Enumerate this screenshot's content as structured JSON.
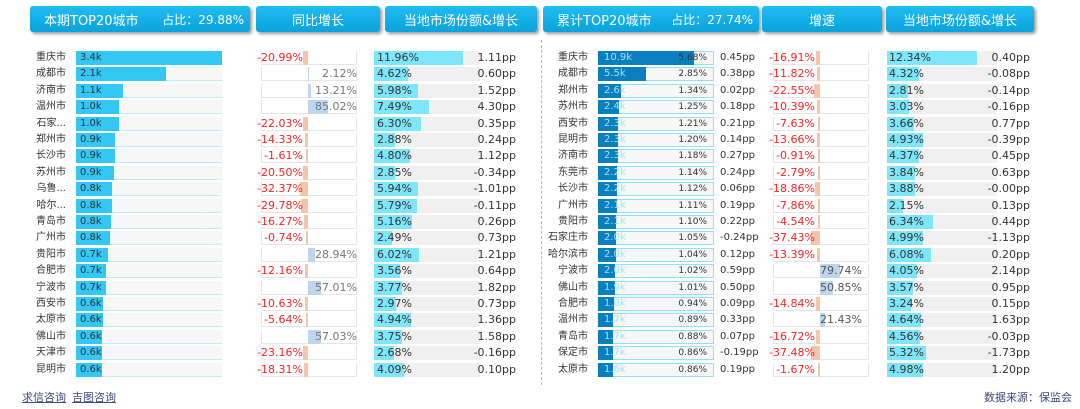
{
  "left": {
    "title": "本期TOP20城市",
    "share_label": "占比：29.88%",
    "growth_header": "同比增长",
    "local_header": "当地市场份额&增长",
    "rows": [
      [
        "重庆市",
        "3.4k",
        3.4,
        -20.99,
        "-20.99%",
        "11.96%",
        11.96,
        "1.11pp"
      ],
      [
        "成都市",
        "2.1k",
        2.1,
        2.12,
        "2.12%",
        "4.62%",
        4.62,
        "0.60pp"
      ],
      [
        "济南市",
        "1.1k",
        1.1,
        13.21,
        "13.21%",
        "5.98%",
        5.98,
        "1.52pp"
      ],
      [
        "温州市",
        "1.0k",
        1.0,
        85.02,
        "85.02%",
        "7.49%",
        7.49,
        "4.30pp"
      ],
      [
        "石家...",
        "1.0k",
        1.0,
        -22.03,
        "-22.03%",
        "6.30%",
        6.3,
        "0.35pp"
      ],
      [
        "郑州市",
        "0.9k",
        0.9,
        -14.33,
        "-14.33%",
        "2.88%",
        2.88,
        "0.24pp"
      ],
      [
        "长沙市",
        "0.9k",
        0.9,
        -1.61,
        "-1.61%",
        "4.80%",
        4.8,
        "1.12pp"
      ],
      [
        "苏州市",
        "0.9k",
        0.88,
        -20.5,
        "-20.50%",
        "2.85%",
        2.85,
        "-0.34pp"
      ],
      [
        "乌鲁...",
        "0.8k",
        0.84,
        -32.37,
        "-32.37%",
        "5.94%",
        5.94,
        "-1.01pp"
      ],
      [
        "哈尔...",
        "0.8k",
        0.83,
        -29.78,
        "-29.78%",
        "5.79%",
        5.79,
        "-0.11pp"
      ],
      [
        "青岛市",
        "0.8k",
        0.81,
        -16.27,
        "-16.27%",
        "5.16%",
        5.16,
        "0.26pp"
      ],
      [
        "广州市",
        "0.8k",
        0.79,
        -0.74,
        "-0.74%",
        "2.49%",
        2.49,
        "0.73pp"
      ],
      [
        "贵阳市",
        "0.7k",
        0.74,
        28.94,
        "28.94%",
        "6.02%",
        6.02,
        "1.21pp"
      ],
      [
        "合肥市",
        "0.7k",
        0.69,
        -12.16,
        "-12.16%",
        "3.56%",
        3.56,
        "0.64pp"
      ],
      [
        "宁波市",
        "0.7k",
        0.69,
        57.01,
        "57.01%",
        "3.77%",
        3.77,
        "1.82pp"
      ],
      [
        "西安市",
        "0.6k",
        0.64,
        -10.63,
        "-10.63%",
        "2.97%",
        2.97,
        "0.73pp"
      ],
      [
        "太原市",
        "0.6k",
        0.62,
        -5.64,
        "-5.64%",
        "4.94%",
        4.94,
        "1.36pp"
      ],
      [
        "佛山市",
        "0.6k",
        0.61,
        57.03,
        "57.03%",
        "3.75%",
        3.75,
        "1.58pp"
      ],
      [
        "天津市",
        "0.6k",
        0.61,
        -23.16,
        "-23.16%",
        "2.68%",
        2.68,
        "-0.16pp"
      ],
      [
        "昆明市",
        "0.6k",
        0.6,
        -18.31,
        "-18.31%",
        "4.09%",
        4.09,
        "0.10pp"
      ]
    ]
  },
  "right": {
    "title": "累计TOP20城市",
    "share_label": "占比：27.74%",
    "growth_header": "增速",
    "local_header": "当地市场份额&增长",
    "rows": [
      [
        "重庆市",
        "10.9k",
        10.9,
        "5.68%",
        "0.45pp",
        -16.91,
        "-16.91%",
        "12.34%",
        12.34,
        "0.40pp"
      ],
      [
        "成都市",
        "5.5k",
        5.5,
        "2.85%",
        "0.38pp",
        -11.82,
        "-11.82%",
        "4.32%",
        4.32,
        "-0.08pp"
      ],
      [
        "郑州市",
        "2.6k",
        2.6,
        "1.34%",
        "0.02pp",
        -22.55,
        "-22.55%",
        "2.81%",
        2.81,
        "-0.14pp"
      ],
      [
        "苏州市",
        "2.4k",
        2.4,
        "1.25%",
        "0.18pp",
        -10.39,
        "-10.39%",
        "3.03%",
        3.03,
        "-0.16pp"
      ],
      [
        "西安市",
        "2.3k",
        2.3,
        "1.21%",
        "0.21pp",
        -7.63,
        "-7.63%",
        "3.66%",
        3.66,
        "0.77pp"
      ],
      [
        "昆明市",
        "2.3k",
        2.3,
        "1.20%",
        "0.14pp",
        -13.66,
        "-13.66%",
        "4.93%",
        4.93,
        "-0.39pp"
      ],
      [
        "济南市",
        "2.3k",
        2.26,
        "1.18%",
        "0.27pp",
        -0.91,
        "-0.91%",
        "4.37%",
        4.37,
        "0.45pp"
      ],
      [
        "东莞市",
        "2.2k",
        2.2,
        "1.14%",
        "0.24pp",
        -2.79,
        "-2.79%",
        "3.84%",
        3.84,
        "0.63pp"
      ],
      [
        "长沙市",
        "2.2k",
        2.15,
        "1.12%",
        "0.06pp",
        -18.86,
        "-18.86%",
        "3.88%",
        3.88,
        "-0.00pp"
      ],
      [
        "广州市",
        "2.1k",
        2.13,
        "1.11%",
        "0.19pp",
        -7.86,
        "-7.86%",
        "2.15%",
        2.15,
        "0.13pp"
      ],
      [
        "贵阳市",
        "2.1k",
        2.1,
        "1.10%",
        "0.22pp",
        -4.54,
        "-4.54%",
        "6.34%",
        6.34,
        "0.44pp"
      ],
      [
        "石家庄市",
        "2.0k",
        2.02,
        "1.05%",
        "-0.24pp",
        -37.43,
        "-37.43%",
        "4.99%",
        4.99,
        "-1.13pp"
      ],
      [
        "哈尔滨市",
        "2.0k",
        2.0,
        "1.04%",
        "0.12pp",
        -13.39,
        "-13.39%",
        "6.08%",
        6.08,
        "0.20pp"
      ],
      [
        "宁波市",
        "2.0k",
        1.96,
        "1.02%",
        "0.59pp",
        79.74,
        "79.74%",
        "4.05%",
        4.05,
        "2.14pp"
      ],
      [
        "佛山市",
        "1.9k",
        1.94,
        "1.01%",
        "0.50pp",
        50.85,
        "50.85%",
        "3.57%",
        3.57,
        "0.95pp"
      ],
      [
        "合肥市",
        "1.8k",
        1.8,
        "0.94%",
        "0.09pp",
        -14.84,
        "-14.84%",
        "3.24%",
        3.24,
        "0.15pp"
      ],
      [
        "温州市",
        "1.7k",
        1.7,
        "0.89%",
        "0.33pp",
        21.43,
        "21.43%",
        "4.64%",
        4.64,
        "1.63pp"
      ],
      [
        "青岛市",
        "1.7k",
        1.69,
        "0.88%",
        "0.07pp",
        -16.72,
        "-16.72%",
        "4.56%",
        4.56,
        "-0.03pp"
      ],
      [
        "保定市",
        "1.7k",
        1.66,
        "0.86%",
        "-0.19pp",
        -37.48,
        "-37.48%",
        "5.32%",
        5.32,
        "-1.73pp"
      ],
      [
        "太原市",
        "1.6k",
        1.65,
        "0.86%",
        "0.19pp",
        -1.67,
        "-1.67%",
        "4.98%",
        4.98,
        "1.20pp"
      ]
    ]
  },
  "footer": {
    "link1": "求信咨询",
    "link2": "吉图咨询",
    "source": "数据来源：保监会"
  },
  "colors": {
    "header": "#0aa3dc",
    "bar": "#33c7f5",
    "cum_bar": "#0a7fc0",
    "share_bar": "#7ee6fb",
    "neg_bar": "#f7c6a8",
    "pos_bar": "#bcd6ee",
    "neg_text": "#ff2020"
  },
  "chart_data": {
    "type": "table",
    "columns_left": [
      "城市",
      "本期",
      "同比增长",
      "当地市场份额",
      "增长"
    ],
    "columns_right": [
      "城市",
      "累计",
      "占比",
      "增长",
      "增速",
      "当地市场份额",
      "增长"
    ]
  }
}
